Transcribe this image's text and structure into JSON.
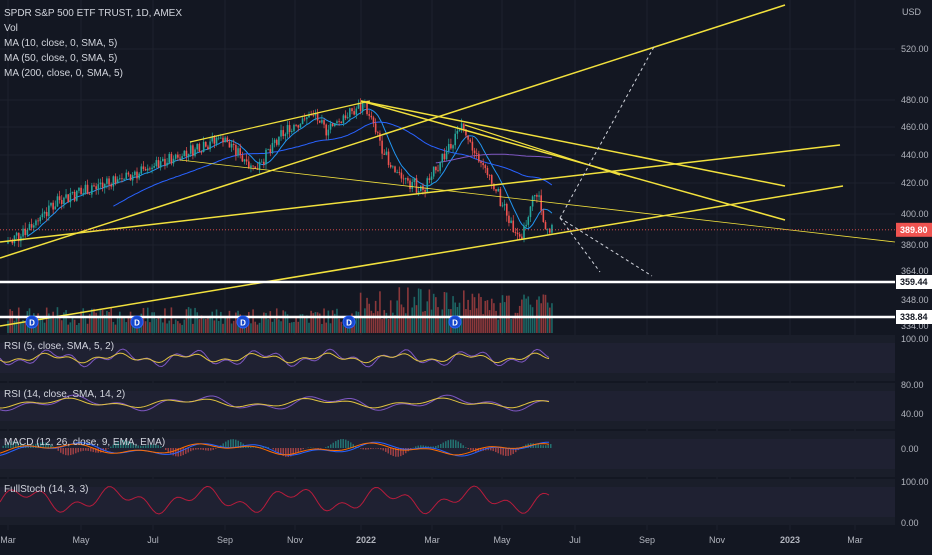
{
  "legend": {
    "symbol": "SPDR S&P 500 ETF TRUST, 1D, AMEX",
    "vol": "Vol",
    "ma10": "MA (10, close, 0, SMA, 5)",
    "ma50": "MA (50, close, 0, SMA, 5)",
    "ma200": "MA (200, close, 0, SMA, 5)"
  },
  "price_axis": {
    "currency": "USD",
    "ticks": [
      "520.00",
      "480.00",
      "460.00",
      "440.00",
      "420.00",
      "400.00",
      "380.00",
      "364.00",
      "348.00",
      "334.00"
    ],
    "last_price_label": "389.80",
    "level_labels": [
      "359.44",
      "338.84"
    ]
  },
  "panes": {
    "rsi1": {
      "label": "RSI (5, close, SMA, 5, 2)",
      "ticks": [
        "100.00"
      ]
    },
    "rsi2": {
      "label": "RSI (14, close, SMA, 14, 2)",
      "ticks": [
        "80.00",
        "40.00"
      ]
    },
    "macd": {
      "label": "MACD (12, 26, close, 9, EMA, EMA)",
      "ticks": [
        "0.00"
      ]
    },
    "stoch": {
      "label": "FullStoch (14, 3, 3)",
      "ticks": [
        "100.00",
        "0.00"
      ]
    }
  },
  "time_axis": {
    "labels": [
      "Mar",
      "May",
      "Jul",
      "Sep",
      "Nov",
      "2022",
      "Mar",
      "May",
      "Jul",
      "Sep",
      "Nov",
      "2023",
      "Mar"
    ]
  },
  "dividend_marker": "D",
  "colors": {
    "background": "#131722",
    "up": "#26a69a",
    "down": "#ef5350",
    "trendline": "#f2e13d",
    "ma10": "#2962ff",
    "ma50": "#2962ff",
    "ma200": "#7e57c2",
    "rsi": "#7e57c2",
    "signal": "#e0c240",
    "macd": "#2962ff",
    "macd_signal": "#ff6d00",
    "stoch": "#b71c3c",
    "level_line": "#ffffff"
  },
  "chart_data": {
    "type": "candlestick",
    "title": "SPDR S&P 500 ETF TRUST, 1D, AMEX",
    "y_unit": "USD",
    "ylim": [
      330,
      545
    ],
    "x_range": [
      "2021-03",
      "2023-03"
    ],
    "last_price": 389.8,
    "horizontal_levels": [
      359.44,
      338.84
    ],
    "price_path": [
      {
        "date": "2021-03-01",
        "close": 381
      },
      {
        "date": "2021-03-20",
        "close": 392
      },
      {
        "date": "2021-04-15",
        "close": 410
      },
      {
        "date": "2021-05-10",
        "close": 416
      },
      {
        "date": "2021-05-25",
        "close": 420
      },
      {
        "date": "2021-06-15",
        "close": 425
      },
      {
        "date": "2021-07-15",
        "close": 435
      },
      {
        "date": "2021-08-15",
        "close": 446
      },
      {
        "date": "2021-09-02",
        "close": 453
      },
      {
        "date": "2021-10-01",
        "close": 430
      },
      {
        "date": "2021-10-25",
        "close": 455
      },
      {
        "date": "2021-11-20",
        "close": 470
      },
      {
        "date": "2021-12-01",
        "close": 458
      },
      {
        "date": "2022-01-04",
        "close": 477
      },
      {
        "date": "2022-01-27",
        "close": 430
      },
      {
        "date": "2022-02-24",
        "close": 415
      },
      {
        "date": "2022-03-29",
        "close": 461
      },
      {
        "date": "2022-04-25",
        "close": 420
      },
      {
        "date": "2022-05-12",
        "close": 392
      },
      {
        "date": "2022-05-20",
        "close": 383
      },
      {
        "date": "2022-06-02",
        "close": 416
      },
      {
        "date": "2022-06-10",
        "close": 390
      }
    ]
  }
}
